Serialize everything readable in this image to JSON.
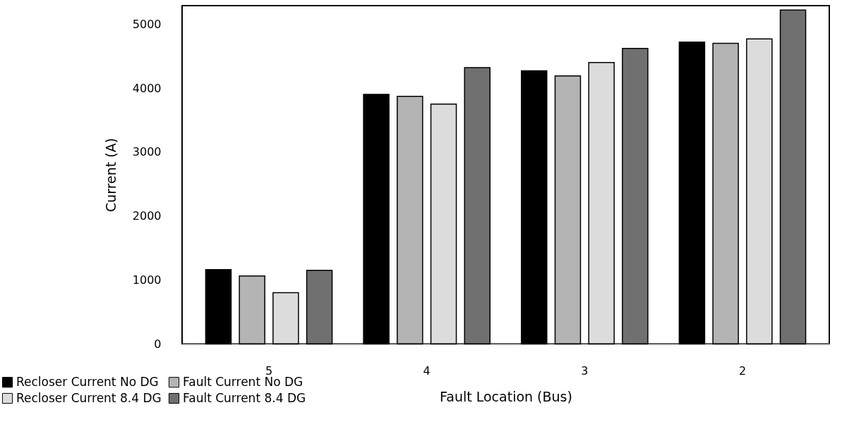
{
  "chart_data": {
    "type": "bar",
    "xlabel": "Fault Location (Bus)",
    "ylabel": "Current (A)",
    "categories": [
      "5",
      "4",
      "3",
      "2"
    ],
    "series": [
      {
        "name": "Recloser Current No DG",
        "color": "#000000",
        "values": [
          1160,
          3900,
          4270,
          4720
        ]
      },
      {
        "name": "Fault Current  No DG",
        "color": "#b4b4b4",
        "values": [
          1060,
          3870,
          4190,
          4700
        ]
      },
      {
        "name": "Recloser Current 8.4 DG",
        "color": "#dcdcdc",
        "values": [
          800,
          3750,
          4400,
          4770
        ]
      },
      {
        "name": "Fault Current  8.4 DG",
        "color": "#707070",
        "values": [
          1150,
          4320,
          4620,
          5220
        ]
      }
    ],
    "ylim": [
      0,
      5290
    ],
    "yticks": [
      0,
      1000,
      2000,
      3000,
      4000,
      5000
    ],
    "grid": false,
    "legend": "bottom left"
  }
}
